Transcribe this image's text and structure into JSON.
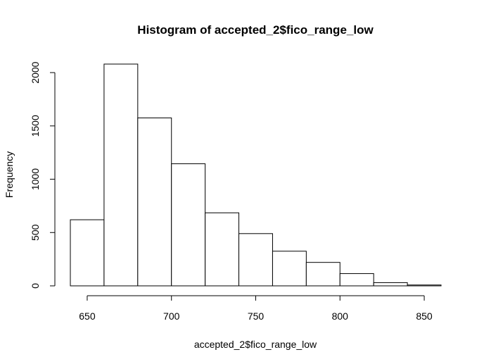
{
  "chart_data": {
    "type": "bar",
    "title": "Histogram of accepted_2$fico_range_low",
    "xlabel": "accepted_2$fico_range_low",
    "ylabel": "Frequency",
    "bins": [
      {
        "start": 640,
        "end": 660,
        "count": 620
      },
      {
        "start": 660,
        "end": 680,
        "count": 2080
      },
      {
        "start": 680,
        "end": 700,
        "count": 1575
      },
      {
        "start": 700,
        "end": 720,
        "count": 1145
      },
      {
        "start": 720,
        "end": 740,
        "count": 685
      },
      {
        "start": 740,
        "end": 760,
        "count": 490
      },
      {
        "start": 760,
        "end": 780,
        "count": 325
      },
      {
        "start": 780,
        "end": 800,
        "count": 220
      },
      {
        "start": 800,
        "end": 820,
        "count": 115
      },
      {
        "start": 820,
        "end": 840,
        "count": 30
      },
      {
        "start": 840,
        "end": 860,
        "count": 8
      }
    ],
    "xticks": [
      650,
      700,
      750,
      800,
      850
    ],
    "yticks": [
      0,
      500,
      1000,
      1500,
      2000
    ],
    "xlim": [
      640,
      860
    ],
    "ylim": [
      0,
      2080
    ],
    "grid": false,
    "bar_fill": "#ffffff",
    "bar_stroke": "#000000"
  }
}
